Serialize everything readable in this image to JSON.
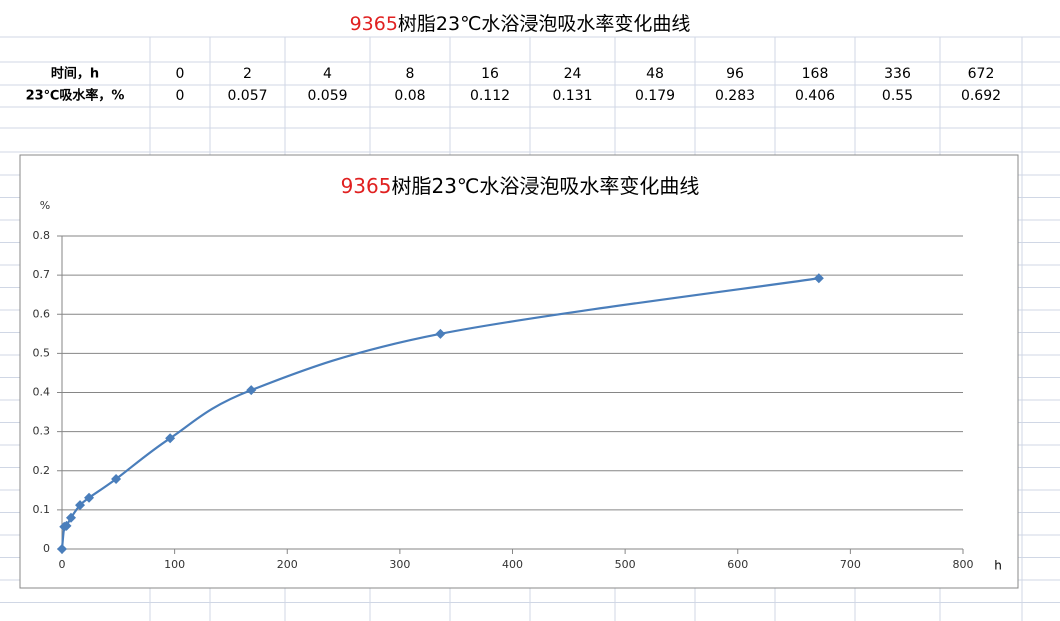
{
  "sheet": {
    "title": [
      "9365",
      "树脂23℃水浴浸泡吸水率变化曲线"
    ],
    "table": {
      "rows": [
        [
          "时间，h",
          0,
          2,
          4,
          8,
          16,
          24,
          48,
          96,
          168,
          336,
          672
        ],
        [
          "23℃吸水率，%",
          0,
          0.057,
          0.059,
          0.08,
          0.112,
          0.131,
          0.179,
          0.283,
          0.406,
          0.55,
          0.692
        ]
      ]
    }
  },
  "chart_data": {
    "type": "scatter",
    "title": [
      "9365",
      "树脂23℃水浴浸泡吸水率变化曲线"
    ],
    "x_label": "h",
    "y_label": "%",
    "x": [
      0,
      2,
      4,
      8,
      16,
      24,
      48,
      96,
      168,
      336,
      672
    ],
    "series": [
      {
        "color": "#4a7ebb",
        "values": [
          0,
          0.057,
          0.059,
          0.08,
          0.112,
          0.131,
          0.179,
          0.283,
          0.406,
          0.55,
          0.692
        ]
      }
    ],
    "xlim": [
      0,
      800
    ],
    "xticks": [
      0,
      100,
      200,
      300,
      400,
      500,
      600,
      700,
      800
    ],
    "ylim": [
      0,
      0.8
    ],
    "yticks": [
      0,
      0.1,
      0.2,
      0.3,
      0.4,
      0.5,
      0.6,
      0.7,
      0.8
    ],
    "grid": true,
    "smooth": true
  }
}
